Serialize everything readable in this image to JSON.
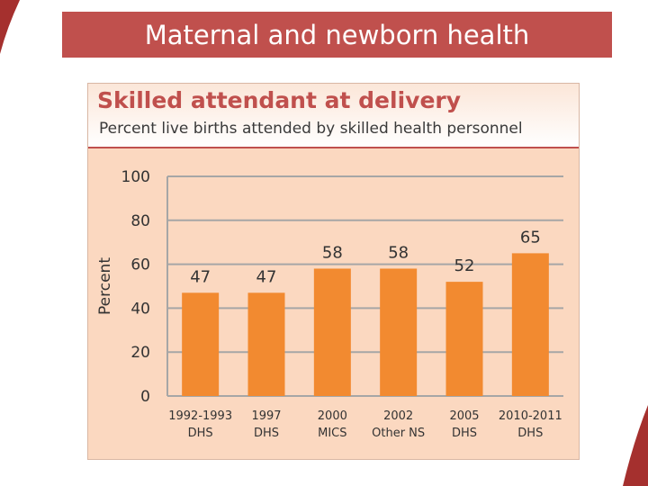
{
  "slide": {
    "title": "Maternal and newborn health"
  },
  "colors": {
    "banner": "#c0504d",
    "bar": "#f28a30",
    "plot_bg": "#fbd8c0",
    "title_text": "#c0504d"
  },
  "chart_data": {
    "type": "bar",
    "title": "Skilled attendant at delivery",
    "subtitle": "Percent live births attended by skilled health personnel",
    "ylabel": "Percent",
    "xlabel": "",
    "ylim": [
      0,
      100
    ],
    "yticks": [
      0,
      20,
      40,
      60,
      80,
      100
    ],
    "grid": true,
    "categories": [
      {
        "line1": "1992-1993",
        "line2": "DHS"
      },
      {
        "line1": "1997",
        "line2": "DHS"
      },
      {
        "line1": "2000",
        "line2": "MICS"
      },
      {
        "line1": "2002",
        "line2": "Other NS"
      },
      {
        "line1": "2005",
        "line2": "DHS"
      },
      {
        "line1": "2010-2011",
        "line2": "DHS"
      }
    ],
    "values": [
      47,
      47,
      58,
      58,
      52,
      65
    ]
  }
}
